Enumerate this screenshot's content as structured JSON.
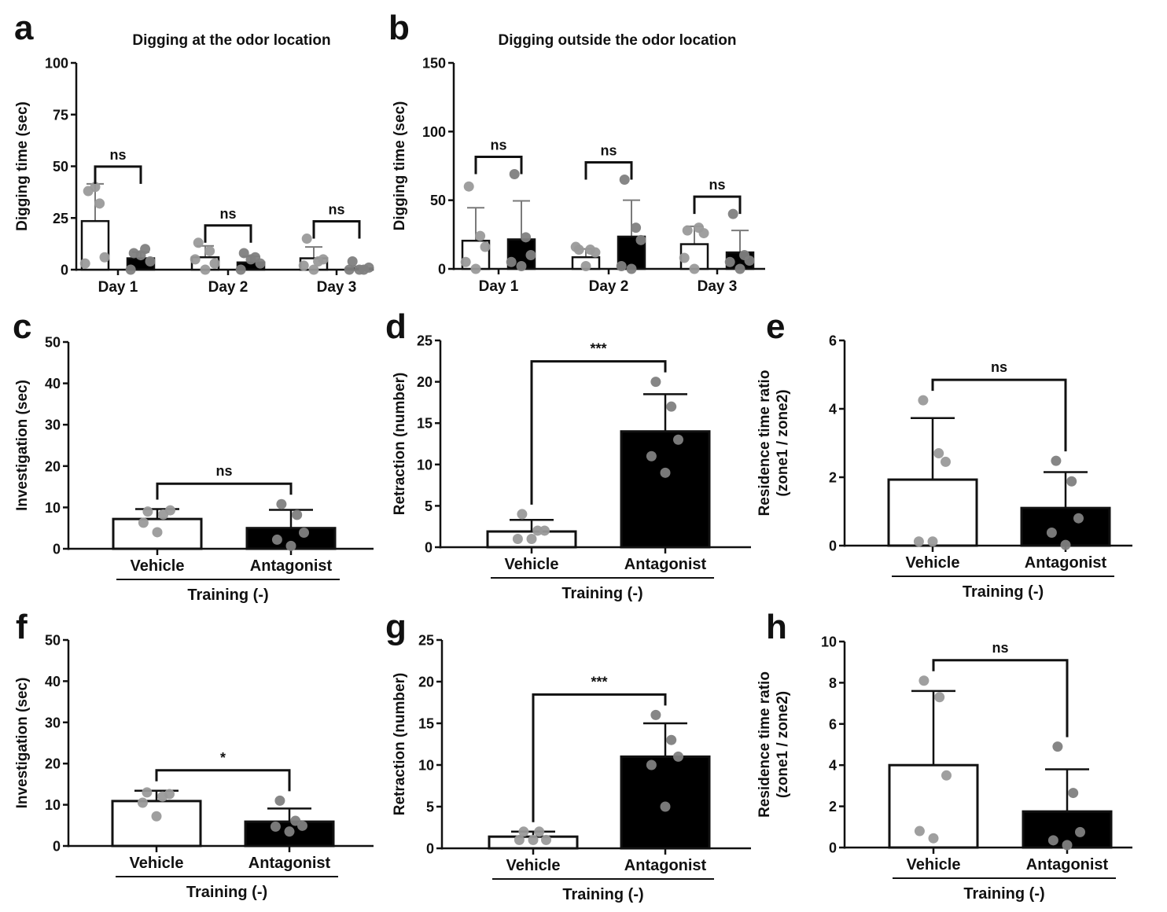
{
  "figure": {
    "panel_letters": [
      "a",
      "b",
      "c",
      "d",
      "e",
      "f",
      "g",
      "h"
    ]
  },
  "colors": {
    "axis": "#111111",
    "vehicle_fill": "#ffffff",
    "antagonist_fill": "#000000",
    "dot_vehicle": "#9a9a9a",
    "dot_antagonist": "#808080",
    "errorbar_grouped": "#7a7a7a"
  },
  "chart_data": [
    {
      "id": "a",
      "type": "bar",
      "title": "Digging at the odor location",
      "xlabel": "",
      "ylabel": "Digging time (sec)",
      "ylim": [
        0,
        100
      ],
      "yticks": [
        0,
        25,
        50,
        75,
        100
      ],
      "categories": [
        "Day 1",
        "Day 2",
        "Day 3"
      ],
      "grouped": true,
      "series": [
        {
          "name": "Vehicle",
          "fill": "white",
          "values": [
            23.5,
            6,
            5.5
          ],
          "sd": [
            18,
            5.5,
            5.5
          ],
          "points": [
            [
              38,
              32,
              6,
              3,
              40
            ],
            [
              13,
              9,
              3,
              5,
              0
            ],
            [
              15,
              4,
              5,
              2,
              0
            ]
          ]
        },
        {
          "name": "Antagonist",
          "fill": "black",
          "values": [
            5.5,
            3.5,
            0.6
          ],
          "sd": [
            3,
            3,
            1
          ],
          "points": [
            [
              8,
              10,
              4,
              0,
              7
            ],
            [
              8,
              6,
              3,
              0,
              5
            ],
            [
              4,
              0,
              1,
              0,
              0
            ]
          ]
        }
      ],
      "significance": [
        "ns",
        "ns",
        "ns"
      ]
    },
    {
      "id": "b",
      "type": "bar",
      "title": "Digging outside the odor location",
      "xlabel": "",
      "ylabel": "Digging time (sec)",
      "ylim": [
        0,
        150
      ],
      "yticks": [
        0,
        50,
        100,
        150
      ],
      "categories": [
        "Day 1",
        "Day 2",
        "Day 3"
      ],
      "grouped": true,
      "series": [
        {
          "name": "Vehicle",
          "fill": "white",
          "values": [
            20.5,
            8.5,
            18
          ],
          "sd": [
            24,
            6,
            13
          ],
          "points": [
            [
              60,
              24,
              16,
              5,
              0
            ],
            [
              14,
              14,
              12,
              16,
              2
            ],
            [
              28,
              30,
              26,
              8,
              0
            ]
          ]
        },
        {
          "name": "Antagonist",
          "fill": "black",
          "values": [
            21.5,
            23.5,
            12
          ],
          "sd": [
            28,
            26.5,
            16
          ],
          "points": [
            [
              69,
              23,
              10,
              5,
              2
            ],
            [
              65,
              30,
              21,
              2,
              0
            ],
            [
              40,
              10,
              6,
              5,
              0
            ]
          ]
        }
      ],
      "significance": [
        "ns",
        "ns",
        "ns"
      ]
    },
    {
      "id": "c",
      "type": "bar",
      "title": "",
      "ylabel": "Investigation (sec)",
      "ylim": [
        0,
        50
      ],
      "yticks": [
        0,
        10,
        20,
        30,
        40,
        50
      ],
      "categories": [
        "Vehicle",
        "Antagonist"
      ],
      "group_label": "Training (-)",
      "grouped": false,
      "values": [
        7.2,
        5.0
      ],
      "sd": [
        2.4,
        4.4
      ],
      "points": [
        [
          9,
          8.3,
          9.3,
          6.3,
          4
        ],
        [
          10.8,
          8.2,
          3.9,
          2.2,
          0.7
        ]
      ],
      "significance": "ns"
    },
    {
      "id": "d",
      "type": "bar",
      "title": "",
      "ylabel": "Retraction (number)",
      "ylim": [
        0,
        25
      ],
      "yticks": [
        0,
        5,
        10,
        15,
        20,
        25
      ],
      "categories": [
        "Vehicle",
        "Antagonist"
      ],
      "group_label": "Training (-)",
      "grouped": false,
      "values": [
        1.9,
        14.0
      ],
      "sd": [
        1.4,
        4.5
      ],
      "points": [
        [
          4,
          2,
          2,
          1,
          1
        ],
        [
          20,
          17,
          13,
          11,
          9
        ]
      ],
      "significance": "***"
    },
    {
      "id": "e",
      "type": "bar",
      "title": "",
      "ylabel": "Residence time ratio\n(zone1 / zone2)",
      "ylim": [
        0,
        6
      ],
      "yticks": [
        0,
        2,
        4,
        6
      ],
      "categories": [
        "Vehicle",
        "Antagonist"
      ],
      "group_label": "Training (-)",
      "grouped": false,
      "values": [
        1.93,
        1.1
      ],
      "sd": [
        1.8,
        1.05
      ],
      "points": [
        [
          4.25,
          2.7,
          2.45,
          0.12,
          0.12
        ],
        [
          2.48,
          1.88,
          0.8,
          0.38,
          0.02
        ]
      ],
      "significance": "ns"
    },
    {
      "id": "f",
      "type": "bar",
      "title": "",
      "ylabel": "Investigation (sec)",
      "ylim": [
        0,
        50
      ],
      "yticks": [
        0,
        10,
        20,
        30,
        40,
        50
      ],
      "categories": [
        "Vehicle",
        "Antagonist"
      ],
      "group_label": "Training (-)",
      "grouped": false,
      "values": [
        10.9,
        5.9
      ],
      "sd": [
        2.5,
        3.2
      ],
      "points": [
        [
          13,
          12,
          12.6,
          10.5,
          7.2
        ],
        [
          11,
          6.1,
          4.9,
          4.7,
          3.5
        ]
      ],
      "significance": "*"
    },
    {
      "id": "g",
      "type": "bar",
      "title": "",
      "ylabel": "Retraction (number)",
      "ylim": [
        0,
        25
      ],
      "yticks": [
        0,
        5,
        10,
        15,
        20,
        25
      ],
      "categories": [
        "Vehicle",
        "Antagonist"
      ],
      "group_label": "Training (-)",
      "grouped": false,
      "values": [
        1.4,
        11.0
      ],
      "sd": [
        0.6,
        4.0
      ],
      "points": [
        [
          2,
          2,
          1,
          1,
          1
        ],
        [
          16,
          13,
          11,
          10,
          5
        ]
      ],
      "significance": "***"
    },
    {
      "id": "h",
      "type": "bar",
      "title": "",
      "ylabel": "Residence time ratio\n(zone1 / zone2)",
      "ylim": [
        0,
        10
      ],
      "yticks": [
        0,
        2,
        4,
        6,
        8,
        10
      ],
      "categories": [
        "Vehicle",
        "Antagonist"
      ],
      "group_label": "Training (-)",
      "grouped": false,
      "values": [
        4.0,
        1.75
      ],
      "sd": [
        3.6,
        2.05
      ],
      "points": [
        [
          8.1,
          7.3,
          3.5,
          0.8,
          0.45
        ],
        [
          4.9,
          2.65,
          0.75,
          0.35,
          0.12
        ]
      ],
      "significance": "ns"
    }
  ]
}
